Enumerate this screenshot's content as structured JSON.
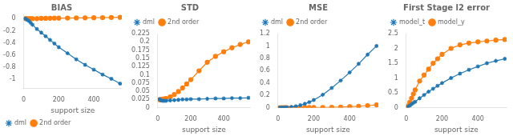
{
  "chart_data": [
    {
      "type": "line",
      "title": "BIAS",
      "xlabel": "support size",
      "x": [
        10,
        20,
        30,
        40,
        50,
        75,
        100,
        125,
        150,
        175,
        200,
        250,
        300,
        350,
        400,
        450,
        500,
        550
      ],
      "series": [
        {
          "name": "dml",
          "color": "#1f77b4",
          "marker": "star",
          "values": [
            0.0,
            -0.02,
            -0.04,
            -0.07,
            -0.1,
            -0.17,
            -0.23,
            -0.29,
            -0.35,
            -0.41,
            -0.47,
            -0.57,
            -0.67,
            -0.76,
            -0.84,
            -0.92,
            -0.99,
            -1.07
          ]
        },
        {
          "name": "2nd order",
          "color": "#ff7f0e",
          "marker": "circle",
          "values": [
            0.0,
            0.0,
            0.0,
            0.0,
            0.0,
            0.0,
            0.005,
            0.005,
            0.007,
            0.008,
            0.009,
            0.01,
            0.012,
            0.013,
            0.015,
            0.017,
            0.019,
            0.022
          ]
        }
      ],
      "xlim": [
        0,
        560
      ],
      "xticks": [
        0,
        200,
        400
      ],
      "ylim": [
        -1.15,
        0.07
      ],
      "yticks": [
        -1,
        -0.8,
        -0.6,
        -0.4,
        -0.2,
        0
      ],
      "grid": false,
      "legend": "lower left"
    },
    {
      "type": "line",
      "title": "STD",
      "xlabel": "support size",
      "x": [
        10,
        20,
        30,
        40,
        50,
        75,
        100,
        125,
        150,
        175,
        200,
        250,
        300,
        350,
        400,
        450,
        500,
        550
      ],
      "series": [
        {
          "name": "dml",
          "color": "#1f77b4",
          "marker": "star",
          "values": [
            0.026,
            0.022,
            0.021,
            0.021,
            0.021,
            0.022,
            0.023,
            0.024,
            0.025,
            0.025,
            0.026,
            0.026,
            0.027,
            0.028,
            0.028,
            0.029,
            0.029,
            0.03
          ],
          "lower": [
            0.023,
            0.019,
            0.018,
            0.018,
            0.018,
            0.019,
            0.02,
            0.021,
            0.022,
            0.022,
            0.023,
            0.023,
            0.024,
            0.025,
            0.025,
            0.026,
            0.026,
            0.027
          ],
          "upper": [
            0.029,
            0.025,
            0.024,
            0.024,
            0.024,
            0.025,
            0.026,
            0.027,
            0.028,
            0.028,
            0.029,
            0.029,
            0.03,
            0.031,
            0.031,
            0.032,
            0.032,
            0.033
          ]
        },
        {
          "name": "2nd order",
          "color": "#ff7f0e",
          "marker": "circle",
          "values": [
            0.024,
            0.025,
            0.026,
            0.027,
            0.028,
            0.033,
            0.04,
            0.049,
            0.06,
            0.072,
            0.085,
            0.112,
            0.138,
            0.156,
            0.17,
            0.182,
            0.192,
            0.2
          ],
          "lower": [
            0.02,
            0.021,
            0.022,
            0.023,
            0.024,
            0.028,
            0.034,
            0.042,
            0.052,
            0.062,
            0.074,
            0.098,
            0.122,
            0.14,
            0.154,
            0.166,
            0.176,
            0.185
          ],
          "upper": [
            0.028,
            0.029,
            0.03,
            0.031,
            0.032,
            0.038,
            0.046,
            0.056,
            0.068,
            0.082,
            0.096,
            0.126,
            0.154,
            0.172,
            0.186,
            0.198,
            0.208,
            0.215
          ]
        }
      ],
      "xlim": [
        0,
        560
      ],
      "xticks": [
        0,
        200,
        400
      ],
      "ylim": [
        0,
        0.225
      ],
      "yticks": [
        0,
        0.025,
        0.05,
        0.075,
        0.1,
        0.125,
        0.15,
        0.175,
        0.2,
        0.225
      ],
      "grid": false,
      "legend": "upper left"
    },
    {
      "type": "line",
      "title": "MSE",
      "xlabel": "support size",
      "x": [
        10,
        20,
        30,
        40,
        50,
        75,
        100,
        125,
        150,
        175,
        200,
        250,
        300,
        350,
        400,
        450,
        500,
        550
      ],
      "series": [
        {
          "name": "dml",
          "color": "#1f77b4",
          "marker": "star",
          "values": [
            0.0007,
            0.001,
            0.002,
            0.003,
            0.005,
            0.012,
            0.023,
            0.04,
            0.062,
            0.09,
            0.125,
            0.21,
            0.32,
            0.44,
            0.57,
            0.71,
            0.86,
            1.0
          ]
        },
        {
          "name": "2nd order",
          "color": "#ff7f0e",
          "marker": "circle",
          "values": [
            0.0005,
            0.001,
            0.001,
            0.001,
            0.001,
            0.001,
            0.001,
            0.001,
            0.002,
            0.002,
            0.003,
            0.004,
            0.006,
            0.01,
            0.016,
            0.024,
            0.034,
            0.046
          ]
        }
      ],
      "xlim": [
        0,
        560
      ],
      "xticks": [
        0,
        200,
        400
      ],
      "ylim": [
        0,
        1.2
      ],
      "yticks": [
        0,
        0.2,
        0.4,
        0.6,
        0.8,
        1,
        1.2
      ],
      "grid": false,
      "legend": "upper left"
    },
    {
      "type": "line",
      "title": "First Stage l2 error",
      "xlabel": "support size",
      "x": [
        10,
        20,
        30,
        40,
        50,
        75,
        100,
        125,
        150,
        175,
        200,
        250,
        300,
        350,
        400,
        450,
        500,
        550
      ],
      "series": [
        {
          "name": "model_t",
          "color": "#1f77b4",
          "marker": "star",
          "values": [
            0.03,
            0.07,
            0.12,
            0.16,
            0.2,
            0.32,
            0.43,
            0.54,
            0.64,
            0.74,
            0.83,
            1.0,
            1.15,
            1.28,
            1.39,
            1.5,
            1.58,
            1.65
          ],
          "lower": [
            0.025,
            0.06,
            0.1,
            0.13,
            0.17,
            0.28,
            0.38,
            0.48,
            0.58,
            0.67,
            0.76,
            0.92,
            1.07,
            1.2,
            1.31,
            1.41,
            1.49,
            1.56
          ],
          "upper": [
            0.035,
            0.08,
            0.14,
            0.19,
            0.23,
            0.36,
            0.48,
            0.6,
            0.7,
            0.81,
            0.9,
            1.08,
            1.23,
            1.36,
            1.47,
            1.59,
            1.67,
            1.74
          ]
        },
        {
          "name": "model_y",
          "color": "#ff7f0e",
          "marker": "circle",
          "values": [
            0.06,
            0.18,
            0.32,
            0.46,
            0.6,
            0.9,
            1.1,
            1.3,
            1.5,
            1.65,
            1.8,
            2.0,
            2.12,
            2.18,
            2.22,
            2.25,
            2.28,
            2.3
          ],
          "lower": [
            0.05,
            0.15,
            0.27,
            0.4,
            0.52,
            0.8,
            0.98,
            1.18,
            1.36,
            1.53,
            1.67,
            1.87,
            1.99,
            2.05,
            2.09,
            2.12,
            2.15,
            2.17
          ],
          "upper": [
            0.07,
            0.21,
            0.37,
            0.52,
            0.68,
            1.0,
            1.22,
            1.42,
            1.64,
            1.77,
            1.93,
            2.13,
            2.25,
            2.31,
            2.35,
            2.38,
            2.41,
            2.43
          ]
        }
      ],
      "xlim": [
        0,
        560
      ],
      "xticks": [
        0,
        200,
        400
      ],
      "ylim": [
        0,
        2.5
      ],
      "yticks": [
        0,
        0.5,
        1,
        1.5,
        2,
        2.5
      ],
      "grid": false,
      "legend": "upper left"
    }
  ]
}
